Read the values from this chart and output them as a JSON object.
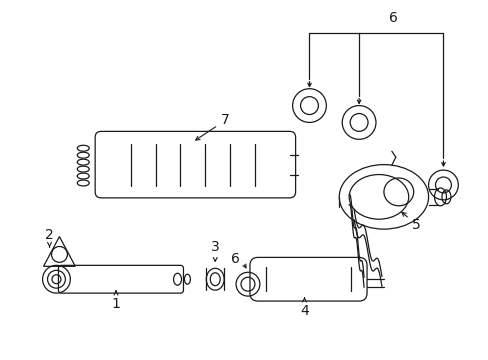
{
  "bg_color": "#ffffff",
  "line_color": "#1a1a1a",
  "label_color": "#1a1a1a",
  "fig_width": 4.89,
  "fig_height": 3.6,
  "dpi": 100,
  "label_fontsize": 10
}
